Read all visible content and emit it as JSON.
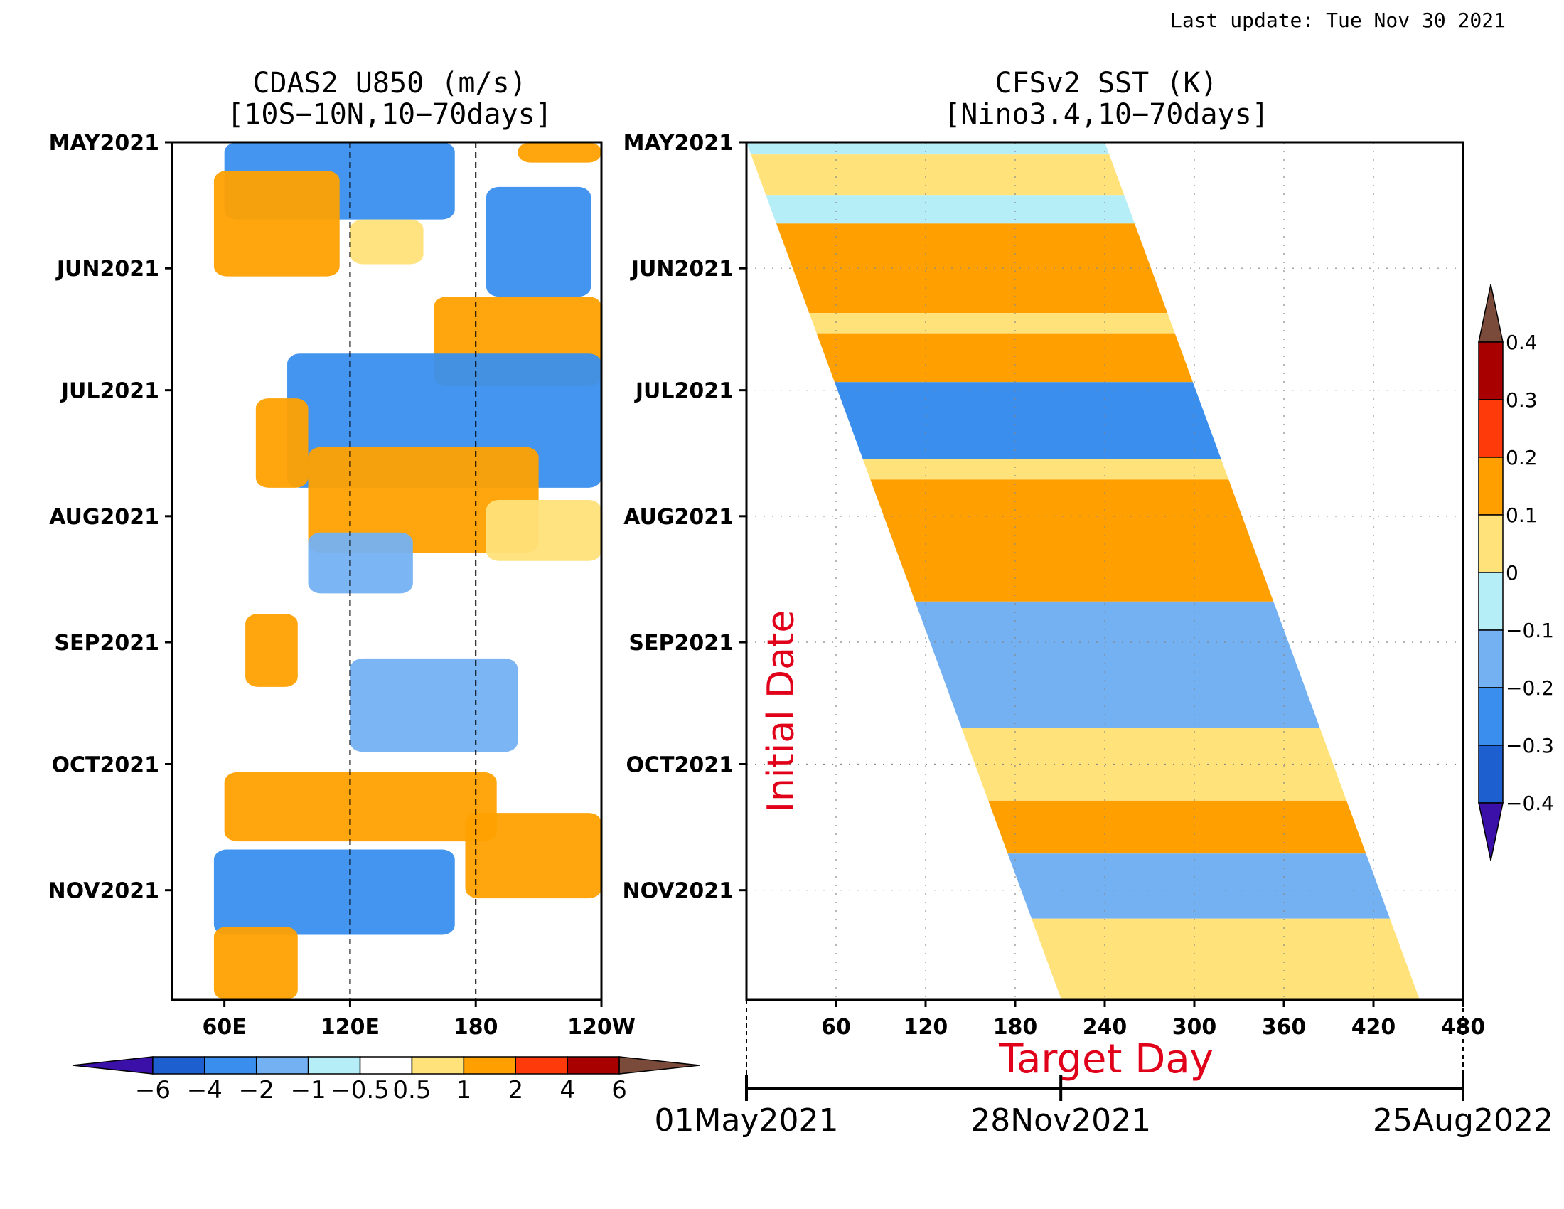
{
  "header": {
    "last_update": "Last update: Tue Nov 30 2021"
  },
  "chart_data": [
    {
      "type": "heatmap",
      "title": "CDAS2 U850 (m/s)",
      "subtitle": "[10S−10N,10−70days]",
      "x_tick_labels": [
        "60E",
        "120E",
        "180",
        "120W"
      ],
      "x_range_deg_east": [
        35,
        240
      ],
      "x_ticks_deg_east": [
        60,
        120,
        180,
        240
      ],
      "dashed_reference_lines_deg_east": [
        120,
        180
      ],
      "y_tick_labels": [
        "MAY2021",
        "JUN2021",
        "JUL2021",
        "AUG2021",
        "SEP2021",
        "OCT2021",
        "NOV2021"
      ],
      "y_range": [
        "2021-05-01",
        "2021-11-28"
      ],
      "colorbar": {
        "levels": [
          -6,
          -4,
          -2,
          -1,
          -0.5,
          0.5,
          1,
          2,
          4,
          6
        ],
        "labels": [
          "−6",
          "−4",
          "−2",
          "−1",
          "−0.5",
          "0.5",
          "1",
          "2",
          "4",
          "6"
        ],
        "colors": [
          "#3a10a8",
          "#1e5fd0",
          "#3a8fee",
          "#74b1f2",
          "#b5eef7",
          "#ffffff",
          "#ffe27a",
          "#ffa000",
          "#ff3a0a",
          "#a80000",
          "#7a4b3a"
        ],
        "orientation": "horizontal"
      },
      "anomaly_bands": [
        {
          "start": "2021-05-01",
          "end": "2021-05-06",
          "lon_from": 200,
          "lon_to": 240,
          "value": 2
        },
        {
          "start": "2021-05-01",
          "end": "2021-05-20",
          "lon_from": 60,
          "lon_to": 170,
          "value": -2
        },
        {
          "start": "2021-05-08",
          "end": "2021-06-03",
          "lon_from": 55,
          "lon_to": 115,
          "value": 2
        },
        {
          "start": "2021-05-20",
          "end": "2021-05-31",
          "lon_from": 120,
          "lon_to": 155,
          "value": 1
        },
        {
          "start": "2021-05-12",
          "end": "2021-06-08",
          "lon_from": 185,
          "lon_to": 235,
          "value": -2
        },
        {
          "start": "2021-06-08",
          "end": "2021-06-30",
          "lon_from": 160,
          "lon_to": 240,
          "value": 2
        },
        {
          "start": "2021-06-22",
          "end": "2021-07-25",
          "lon_from": 90,
          "lon_to": 240,
          "value": -2
        },
        {
          "start": "2021-07-03",
          "end": "2021-07-25",
          "lon_from": 75,
          "lon_to": 100,
          "value": 2
        },
        {
          "start": "2021-07-15",
          "end": "2021-08-10",
          "lon_from": 100,
          "lon_to": 210,
          "value": 2
        },
        {
          "start": "2021-07-28",
          "end": "2021-08-12",
          "lon_from": 185,
          "lon_to": 240,
          "value": 1
        },
        {
          "start": "2021-08-05",
          "end": "2021-08-20",
          "lon_from": 100,
          "lon_to": 150,
          "value": -1
        },
        {
          "start": "2021-08-25",
          "end": "2021-09-12",
          "lon_from": 70,
          "lon_to": 95,
          "value": 2
        },
        {
          "start": "2021-09-05",
          "end": "2021-09-28",
          "lon_from": 120,
          "lon_to": 200,
          "value": -1
        },
        {
          "start": "2021-10-03",
          "end": "2021-10-20",
          "lon_from": 60,
          "lon_to": 190,
          "value": 2
        },
        {
          "start": "2021-10-13",
          "end": "2021-11-03",
          "lon_from": 175,
          "lon_to": 240,
          "value": 2
        },
        {
          "start": "2021-10-22",
          "end": "2021-11-12",
          "lon_from": 55,
          "lon_to": 170,
          "value": -2
        },
        {
          "start": "2021-11-10",
          "end": "2021-11-28",
          "lon_from": 55,
          "lon_to": 95,
          "value": 2
        }
      ]
    },
    {
      "type": "heatmap",
      "title": "CFSv2 SST (K)",
      "subtitle": "[Nino3.4,10−70days]",
      "xlabel": "Target Day",
      "ylabel": "Initial Date",
      "x_tick_labels": [
        "60",
        "120",
        "180",
        "240",
        "300",
        "360",
        "420",
        "480"
      ],
      "x_range": [
        0,
        480
      ],
      "x_ticks": [
        60,
        120,
        180,
        240,
        300,
        360,
        420,
        480
      ],
      "grid": true,
      "y_tick_labels": [
        "MAY2021",
        "JUN2021",
        "JUL2021",
        "AUG2021",
        "SEP2021",
        "OCT2021",
        "NOV2021"
      ],
      "y_range": [
        "2021-05-01",
        "2021-11-28"
      ],
      "secondary_axis": {
        "labels": [
          "01May2021",
          "28Nov2021",
          "25Aug2022"
        ],
        "dates": [
          "2021-05-01",
          "2021-11-28",
          "2022-08-25"
        ]
      },
      "forecast_window_days": [
        0,
        240
      ],
      "colorbar": {
        "levels": [
          -0.4,
          -0.3,
          -0.2,
          -0.1,
          0,
          0.1,
          0.2,
          0.3,
          0.4
        ],
        "labels": [
          "−0.4",
          "−0.3",
          "−0.2",
          "−0.1",
          "0",
          "0.1",
          "0.2",
          "0.3",
          "0.4"
        ],
        "colors": [
          "#3a10a8",
          "#1e5fd0",
          "#3a8fee",
          "#74b1f2",
          "#b5eef7",
          "#ffe27a",
          "#ffa000",
          "#ff3a0a",
          "#a80000",
          "#7a4b3a"
        ],
        "orientation": "vertical"
      },
      "anomaly_bands": [
        {
          "start": "2021-05-01",
          "end": "2021-05-04",
          "value": -0.05
        },
        {
          "start": "2021-05-04",
          "end": "2021-05-14",
          "value": 0.05
        },
        {
          "start": "2021-05-14",
          "end": "2021-05-21",
          "value": -0.05
        },
        {
          "start": "2021-05-21",
          "end": "2021-06-12",
          "value": 0.15
        },
        {
          "start": "2021-06-12",
          "end": "2021-06-17",
          "value": 0.05
        },
        {
          "start": "2021-06-17",
          "end": "2021-06-29",
          "value": 0.15
        },
        {
          "start": "2021-06-29",
          "end": "2021-07-18",
          "value": -0.25
        },
        {
          "start": "2021-07-18",
          "end": "2021-07-23",
          "value": 0.05
        },
        {
          "start": "2021-07-23",
          "end": "2021-08-22",
          "value": 0.15
        },
        {
          "start": "2021-08-22",
          "end": "2021-09-22",
          "value": -0.15
        },
        {
          "start": "2021-09-22",
          "end": "2021-10-10",
          "value": 0.05
        },
        {
          "start": "2021-10-10",
          "end": "2021-10-23",
          "value": 0.15
        },
        {
          "start": "2021-10-23",
          "end": "2021-11-08",
          "value": -0.15
        },
        {
          "start": "2021-11-08",
          "end": "2021-11-28",
          "value": 0.05
        }
      ]
    }
  ]
}
